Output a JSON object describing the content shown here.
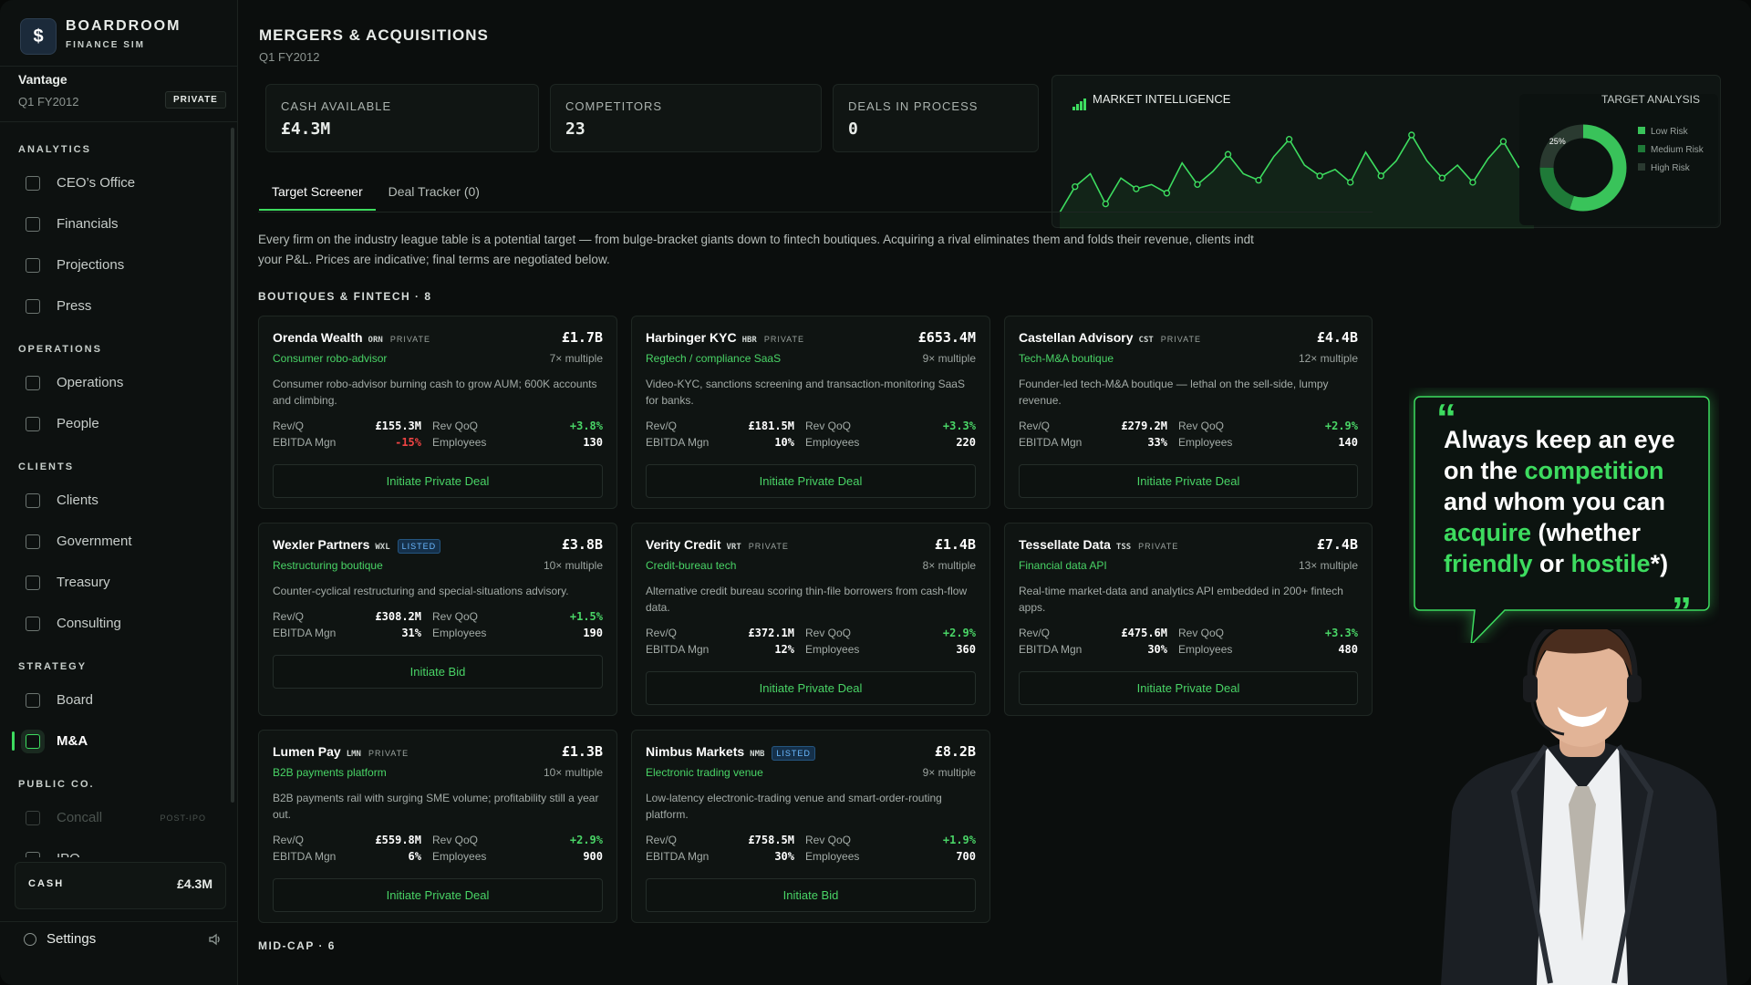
{
  "app": {
    "brand": "BOARDROOM",
    "subtitle": "FINANCE SIM",
    "company": "Vantage",
    "period": "Q1 FY2012",
    "status": "PRIVATE"
  },
  "nav": [
    {
      "title": "ANALYTICS",
      "items": [
        {
          "label": "CEO’s Office"
        },
        {
          "label": "Financials"
        },
        {
          "label": "Projections"
        },
        {
          "label": "Press"
        }
      ]
    },
    {
      "title": "OPERATIONS",
      "items": [
        {
          "label": "Operations"
        },
        {
          "label": "People"
        }
      ]
    },
    {
      "title": "CLIENTS",
      "items": [
        {
          "label": "Clients"
        },
        {
          "label": "Government"
        },
        {
          "label": "Treasury"
        },
        {
          "label": "Consulting"
        }
      ]
    },
    {
      "title": "STRATEGY",
      "items": [
        {
          "label": "Board"
        },
        {
          "label": "M&A",
          "active": true
        }
      ]
    },
    {
      "title": "PUBLIC CO.",
      "items": [
        {
          "label": "Concall",
          "disabled": true,
          "note": "POST-IPO"
        },
        {
          "label": "IPO"
        }
      ]
    }
  ],
  "sidebar_cash": {
    "label": "CASH",
    "value": "£4.3M"
  },
  "settings": "Settings",
  "page": {
    "title": "MERGERS & ACQUISITIONS",
    "period": "Q1 FY2012"
  },
  "stats": [
    {
      "label": "CASH AVAILABLE",
      "value": "£4.3M"
    },
    {
      "label": "COMPETITORS",
      "value": 23
    },
    {
      "label": "DEALS IN PROCESS",
      "value": 0
    }
  ],
  "market_intelligence": {
    "title": "MARKET INTELLIGENCE",
    "trend": [
      22,
      34,
      40,
      26,
      38,
      33,
      35,
      31,
      45,
      35,
      41,
      49,
      40,
      37,
      48,
      56,
      44,
      39,
      42,
      36,
      50,
      39,
      46,
      58,
      46,
      38,
      44,
      36,
      47,
      55,
      43,
      49
    ],
    "target_analysis": {
      "title": "TARGET ANALYSIS",
      "segments": [
        {
          "name": "Low Risk",
          "value": 55,
          "color": "#39c35a"
        },
        {
          "name": "Medium Risk",
          "value": 20,
          "color": "#1f7a38"
        },
        {
          "name": "High Risk",
          "value": 25,
          "color": "#2a3a30",
          "value_label": "25%"
        }
      ]
    }
  },
  "tabs": [
    {
      "label": "Target Screener",
      "active": true
    },
    {
      "label": "Deal Tracker (0)"
    }
  ],
  "description": "Every firm on the industry league table is a potential target — from bulge-bracket giants down to fintech boutiques. Acquiring a rival eliminates them and folds their revenue, clients indt your P&L. Prices are indicative; final terms are negotiated below.",
  "metric_labels": {
    "rev": "Rev/Q",
    "qoq": "Rev QoQ",
    "ebitda": "EBITDA Mgn",
    "employees": "Employees"
  },
  "sections": [
    {
      "title": "BOUTIQUES & FINTECH · 8",
      "cards": [
        {
          "name": "Orenda Wealth",
          "ticker": "ORN",
          "status": "PRIVATE",
          "price": "£1.7B",
          "sector": "Consumer robo-advisor",
          "multiple": "7× multiple",
          "desc": "Consumer robo-advisor burning cash to grow AUM; 600K accounts and climbing.",
          "rev": "£155.3M",
          "qoq": "+3.8%",
          "ebitda": "-15%",
          "employees": 130,
          "action": "Initiate Private Deal"
        },
        {
          "name": "Harbinger KYC",
          "ticker": "HBR",
          "status": "PRIVATE",
          "price": "£653.4M",
          "sector": "Regtech / compliance SaaS",
          "multiple": "9× multiple",
          "desc": "Video-KYC, sanctions screening and transaction-monitoring SaaS for banks.",
          "rev": "£181.5M",
          "qoq": "+3.3%",
          "ebitda": "10%",
          "employees": 220,
          "action": "Initiate Private Deal"
        },
        {
          "name": "Castellan Advisory",
          "ticker": "CST",
          "status": "PRIVATE",
          "price": "£4.4B",
          "sector": "Tech-M&A boutique",
          "multiple": "12× multiple",
          "desc": "Founder-led tech-M&A boutique — lethal on the sell-side, lumpy revenue.",
          "rev": "£279.2M",
          "qoq": "+2.9%",
          "ebitda": "33%",
          "employees": 140,
          "action": "Initiate Private Deal"
        },
        {
          "name": "Wexler Partners",
          "ticker": "WXL",
          "status": "LISTED",
          "price": "£3.8B",
          "sector": "Restructuring boutique",
          "multiple": "10× multiple",
          "desc": "Counter-cyclical restructuring and special-situations advisory.",
          "rev": "£308.2M",
          "qoq": "+1.5%",
          "ebitda": "31%",
          "employees": 190,
          "action": "Initiate Bid"
        },
        {
          "name": "Verity Credit",
          "ticker": "VRT",
          "status": "PRIVATE",
          "price": "£1.4B",
          "sector": "Credit-bureau tech",
          "multiple": "8× multiple",
          "desc": "Alternative credit bureau scoring thin-file borrowers from cash-flow data.",
          "rev": "£372.1M",
          "qoq": "+2.9%",
          "ebitda": "12%",
          "employees": 360,
          "action": "Initiate Private Deal"
        },
        {
          "name": "Tessellate Data",
          "ticker": "TSS",
          "status": "PRIVATE",
          "price": "£7.4B",
          "sector": "Financial data API",
          "multiple": "13× multiple",
          "desc": "Real-time market-data and analytics API embedded in 200+ fintech apps.",
          "rev": "£475.6M",
          "qoq": "+3.3%",
          "ebitda": "30%",
          "employees": 480,
          "action": "Initiate Private Deal"
        },
        {
          "name": "Lumen Pay",
          "ticker": "LMN",
          "status": "PRIVATE",
          "price": "£1.3B",
          "sector": "B2B payments platform",
          "multiple": "10× multiple",
          "desc": "B2B payments rail with surging SME volume; profitability still a year out.",
          "rev": "£559.8M",
          "qoq": "+2.9%",
          "ebitda": "6%",
          "employees": 900,
          "action": "Initiate Private Deal"
        },
        {
          "name": "Nimbus Markets",
          "ticker": "NMB",
          "status": "LISTED",
          "price": "£8.2B",
          "sector": "Electronic trading venue",
          "multiple": "9× multiple",
          "desc": "Low-latency electronic-trading venue and smart-order-routing platform.",
          "rev": "£758.5M",
          "qoq": "+1.9%",
          "ebitda": "30%",
          "employees": 700,
          "action": "Initiate Bid"
        }
      ]
    },
    {
      "title": "MID-CAP · 6",
      "cards": []
    }
  ],
  "quote": [
    {
      "text": "Always keep an eye on the "
    },
    {
      "text": "competition",
      "highlight": true
    },
    {
      "text": " and whom you can "
    },
    {
      "text": "acquire",
      "highlight": true
    },
    {
      "text": " (whether "
    },
    {
      "text": "friendly",
      "highlight": true
    },
    {
      "text": " or "
    },
    {
      "text": "hostile",
      "highlight": true
    },
    {
      "text": "*)"
    }
  ]
}
